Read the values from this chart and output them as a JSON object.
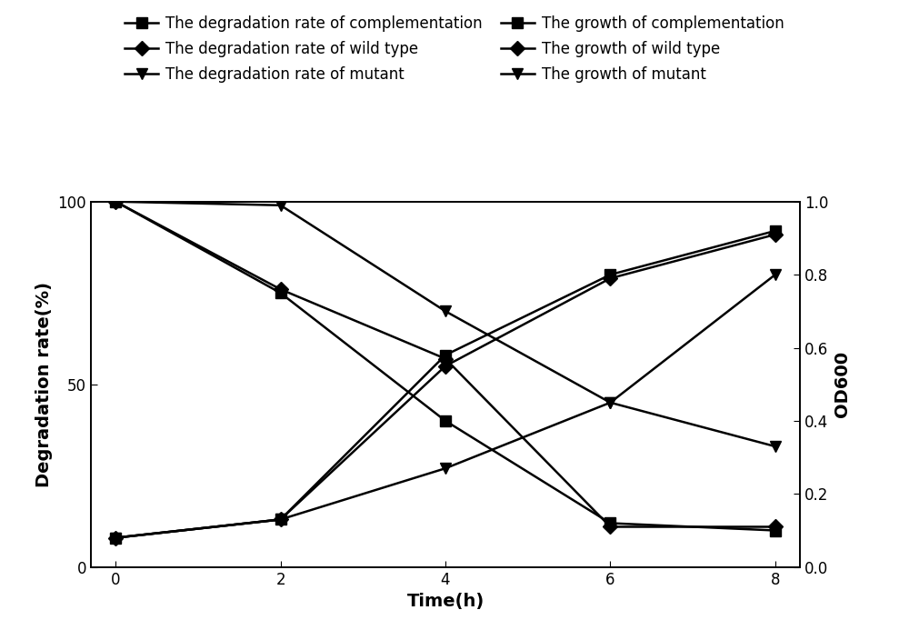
{
  "time": [
    0,
    2,
    4,
    6,
    8
  ],
  "degradation_complementation": [
    100,
    75,
    40,
    12,
    10
  ],
  "degradation_wild": [
    100,
    76,
    57,
    11,
    11
  ],
  "degradation_mutant": [
    100,
    99,
    70,
    45,
    33
  ],
  "growth_complementation": [
    0.08,
    0.13,
    0.58,
    0.8,
    0.92
  ],
  "growth_wild": [
    0.08,
    0.13,
    0.55,
    0.79,
    0.91
  ],
  "growth_mutant": [
    0.08,
    0.13,
    0.27,
    0.45,
    0.8
  ],
  "left_ylim": [
    0,
    100
  ],
  "right_ylim": [
    0.0,
    1.0
  ],
  "xlabel": "Time(h)",
  "ylabel_left": "Degradation rate(%)",
  "ylabel_right": "OD600",
  "xticks": [
    0,
    2,
    4,
    6,
    8
  ],
  "left_yticks": [
    0,
    50,
    100
  ],
  "right_yticks": [
    0.0,
    0.2,
    0.4,
    0.6,
    0.8,
    1.0
  ],
  "color": "#000000",
  "legend_entries": [
    "The degradation rate of complementation",
    "The degradation rate of wild type",
    "The degradation rate of mutant",
    "The growth of complementation",
    "The growth of wild type",
    "The growth of mutant"
  ],
  "marker_square": "s",
  "marker_diamond": "D",
  "marker_triangle_down": "v",
  "linewidth": 1.8,
  "markersize": 8,
  "legend_fontsize": 12,
  "axis_label_fontsize": 14,
  "tick_labelsize": 12
}
